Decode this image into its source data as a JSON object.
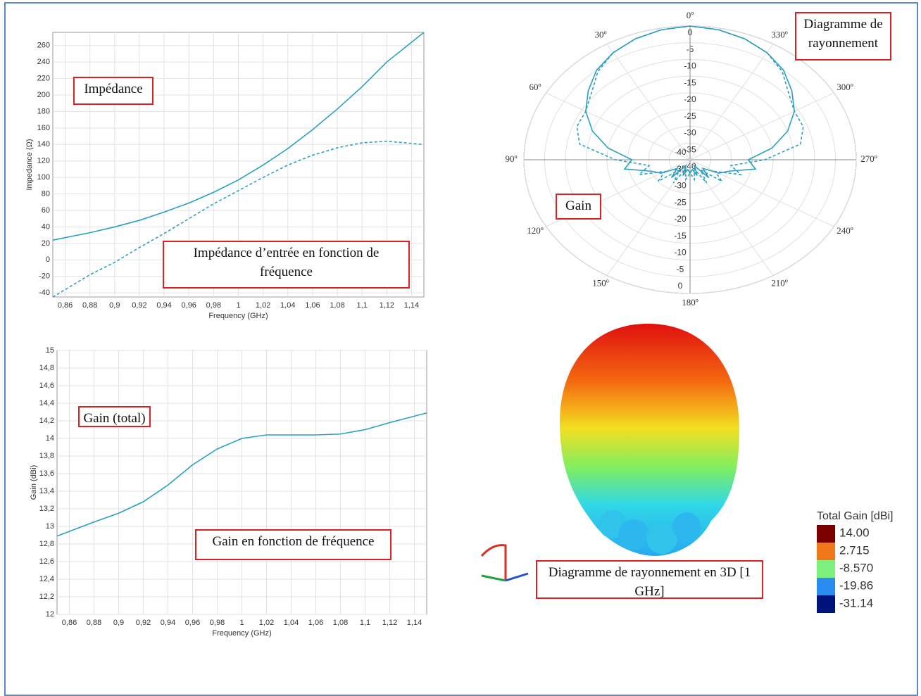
{
  "chart_data": [
    {
      "type": "line",
      "xlabel": "Frequency (GHz)",
      "ylabel": "Impedance (Ω)",
      "annotations": [
        "Impédance",
        "Impédance d’entrée en fonction de fréquence"
      ],
      "xlim": [
        0.85,
        1.15
      ],
      "ylim": [
        -45,
        276
      ],
      "grid": true,
      "xticks": [
        {
          "value": 0.86,
          "label": "0,86"
        },
        {
          "value": 0.88,
          "label": "0,88"
        },
        {
          "value": 0.9,
          "label": "0,9"
        },
        {
          "value": 0.92,
          "label": "0,92"
        },
        {
          "value": 0.94,
          "label": "0,94"
        },
        {
          "value": 0.96,
          "label": "0,96"
        },
        {
          "value": 0.98,
          "label": "0,98"
        },
        1,
        {
          "value": 1.02,
          "label": "1,02"
        },
        {
          "value": 1.04,
          "label": "1,04"
        },
        {
          "value": 1.06,
          "label": "1,06"
        },
        {
          "value": 1.08,
          "label": "1,08"
        },
        {
          "value": 1.1,
          "label": "1,1"
        },
        {
          "value": 1.12,
          "label": "1,12"
        },
        {
          "value": 1.14,
          "label": "1,14"
        }
      ],
      "yticks": [
        -40,
        -20,
        0,
        20,
        40,
        60,
        80,
        100,
        120,
        140,
        160,
        180,
        200,
        220,
        240,
        260
      ],
      "x": [
        0.85,
        0.88,
        0.9,
        0.92,
        0.94,
        0.96,
        0.98,
        1.0,
        1.02,
        1.04,
        1.06,
        1.08,
        1.1,
        1.12,
        1.15
      ],
      "series": [
        {
          "color": "#2a9fc2",
          "dash": false,
          "values": [
            24,
            33,
            40,
            48,
            58,
            69,
            82,
            97,
            115,
            135,
            158,
            183,
            210,
            240,
            276
          ]
        },
        {
          "color": "#2a9fc2",
          "dash": true,
          "values": [
            -45,
            -18,
            -3,
            15,
            32,
            50,
            68,
            84,
            100,
            115,
            127,
            136,
            142,
            144,
            140
          ]
        }
      ]
    },
    {
      "type": "polar",
      "annotations": [
        "Diagramme de rayonnement",
        "Gain"
      ],
      "rlim": [
        -40,
        0
      ],
      "rticks": [
        0,
        -5,
        -10,
        -15,
        -20,
        -25,
        -30,
        -35,
        -40
      ],
      "thetaticks": [
        {
          "value": 0,
          "label": "0º"
        },
        {
          "value": 30,
          "label": "30º"
        },
        {
          "value": 60,
          "label": "60º"
        },
        {
          "value": 90,
          "label": "90º"
        },
        {
          "value": 120,
          "label": "120º"
        },
        {
          "value": 150,
          "label": "150º"
        },
        {
          "value": 180,
          "label": "180º"
        },
        {
          "value": 210,
          "label": "210º"
        },
        {
          "value": 240,
          "label": "240º"
        },
        {
          "value": 270,
          "label": "270º"
        },
        {
          "value": 300,
          "label": "300º"
        },
        {
          "value": 330,
          "label": "330º"
        }
      ],
      "theta": [
        0,
        10,
        20,
        30,
        40,
        50,
        60,
        70,
        80,
        90,
        100,
        110,
        120,
        130,
        140,
        150,
        160,
        170,
        180,
        190,
        200,
        210,
        220,
        230,
        240,
        250,
        260,
        270,
        280,
        290,
        300,
        310,
        320,
        330,
        340,
        350,
        360
      ],
      "series": [
        {
          "color": "#2a9fc2",
          "dash": false,
          "values": [
            0,
            -0.5,
            -1.5,
            -3,
            -5,
            -8,
            -11,
            -15,
            -20,
            -26,
            -24,
            -30,
            -32,
            -36,
            -33,
            -38,
            -35,
            -37,
            -36,
            -37,
            -35,
            -38,
            -33,
            -36,
            -32,
            -30,
            -24,
            -26,
            -20,
            -15,
            -11,
            -8,
            -5,
            -3,
            -1.5,
            -0.5,
            0
          ]
        },
        {
          "color": "#2a9fc2",
          "dash": true,
          "values": [
            0,
            -0.5,
            -1.5,
            -3,
            -5.5,
            -9,
            -11,
            -11,
            -13,
            -22,
            -30,
            -27,
            -33,
            -30,
            -36,
            -32,
            -37,
            -34,
            -36,
            -34,
            -37,
            -32,
            -36,
            -30,
            -33,
            -27,
            -30,
            -22,
            -13,
            -11,
            -11,
            -9,
            -5.5,
            -3,
            -1.5,
            -0.5,
            0
          ]
        }
      ]
    },
    {
      "type": "line",
      "xlabel": "Frequency (GHz)",
      "ylabel": "Gain (dBi)",
      "annotations": [
        "Gain (total)",
        "Gain en fonction de fréquence"
      ],
      "xlim": [
        0.85,
        1.15
      ],
      "ylim": [
        12,
        15
      ],
      "grid": true,
      "xticks": [
        {
          "value": 0.86,
          "label": "0,86"
        },
        {
          "value": 0.88,
          "label": "0,88"
        },
        {
          "value": 0.9,
          "label": "0,9"
        },
        {
          "value": 0.92,
          "label": "0,92"
        },
        {
          "value": 0.94,
          "label": "0,94"
        },
        {
          "value": 0.96,
          "label": "0,96"
        },
        {
          "value": 0.98,
          "label": "0,98"
        },
        1,
        {
          "value": 1.02,
          "label": "1,02"
        },
        {
          "value": 1.04,
          "label": "1,04"
        },
        {
          "value": 1.06,
          "label": "1,06"
        },
        {
          "value": 1.08,
          "label": "1,08"
        },
        {
          "value": 1.1,
          "label": "1,1"
        },
        {
          "value": 1.12,
          "label": "1,12"
        },
        {
          "value": 1.14,
          "label": "1,14"
        }
      ],
      "yticks": [
        12,
        {
          "value": 12.2,
          "label": "12,2"
        },
        {
          "value": 12.4,
          "label": "12,4"
        },
        {
          "value": 12.6,
          "label": "12,6"
        },
        {
          "value": 12.8,
          "label": "12,8"
        },
        13,
        {
          "value": 13.2,
          "label": "13,2"
        },
        {
          "value": 13.4,
          "label": "13,4"
        },
        {
          "value": 13.6,
          "label": "13,6"
        },
        {
          "value": 13.8,
          "label": "13,8"
        },
        14,
        {
          "value": 14.2,
          "label": "14,2"
        },
        {
          "value": 14.4,
          "label": "14,4"
        },
        {
          "value": 14.6,
          "label": "14,6"
        },
        {
          "value": 14.8,
          "label": "14,8"
        },
        15
      ],
      "x": [
        0.85,
        0.88,
        0.9,
        0.92,
        0.94,
        0.96,
        0.98,
        1.0,
        1.02,
        1.04,
        1.06,
        1.08,
        1.1,
        1.12,
        1.15
      ],
      "series": [
        {
          "color": "#2a9fc2",
          "dash": false,
          "values": [
            12.89,
            13.05,
            13.15,
            13.28,
            13.47,
            13.7,
            13.88,
            14.0,
            14.04,
            14.04,
            14.04,
            14.05,
            14.1,
            14.18,
            14.29
          ]
        }
      ]
    },
    {
      "type": "colorbar",
      "title": "Total Gain [dBi]",
      "annotations": [
        "Diagramme de rayonnement en 3D [1 GHz]"
      ],
      "ticks": [
        {
          "value": 14,
          "label": "14.00"
        },
        {
          "value": 2.715,
          "label": "2.715"
        },
        {
          "value": -8.57,
          "label": "-8.570"
        },
        {
          "value": -19.86,
          "label": "-19.86"
        },
        {
          "value": -31.14,
          "label": "-31.14"
        }
      ],
      "colors": [
        "#7a0000",
        "#f07818",
        "#7ef07e",
        "#2a8cf0",
        "#00137a"
      ]
    }
  ]
}
